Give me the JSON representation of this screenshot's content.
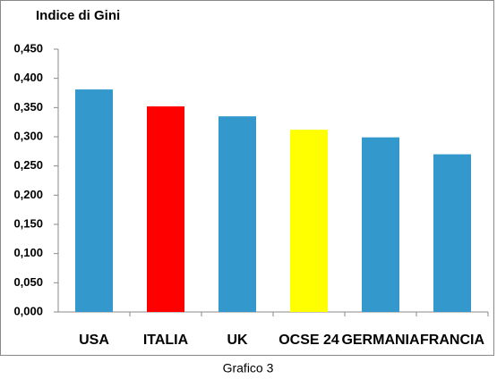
{
  "chart_data": {
    "type": "bar",
    "title": "Indice di Gini",
    "caption": "Grafico 3",
    "categories": [
      "USA",
      "ITALIA",
      "UK",
      "OCSE 24",
      "GERMANIA",
      "FRANCIA"
    ],
    "values": [
      0.381,
      0.352,
      0.335,
      0.312,
      0.299,
      0.27
    ],
    "colors": [
      "#3399cc",
      "#ff0000",
      "#3399cc",
      "#ffff00",
      "#3399cc",
      "#3399cc"
    ],
    "ylim": [
      0,
      0.45
    ],
    "yticks": [
      {
        "value": 0,
        "label": "0,000"
      },
      {
        "value": 0.05,
        "label": "0,050"
      },
      {
        "value": 0.1,
        "label": "0,100"
      },
      {
        "value": 0.15,
        "label": "0,150"
      },
      {
        "value": 0.2,
        "label": "0,200"
      },
      {
        "value": 0.25,
        "label": "0,250"
      },
      {
        "value": 0.3,
        "label": "0,300"
      },
      {
        "value": 0.35,
        "label": "0,350"
      },
      {
        "value": 0.4,
        "label": "0,400"
      },
      {
        "value": 0.45,
        "label": "0,450"
      }
    ],
    "grid": false
  }
}
